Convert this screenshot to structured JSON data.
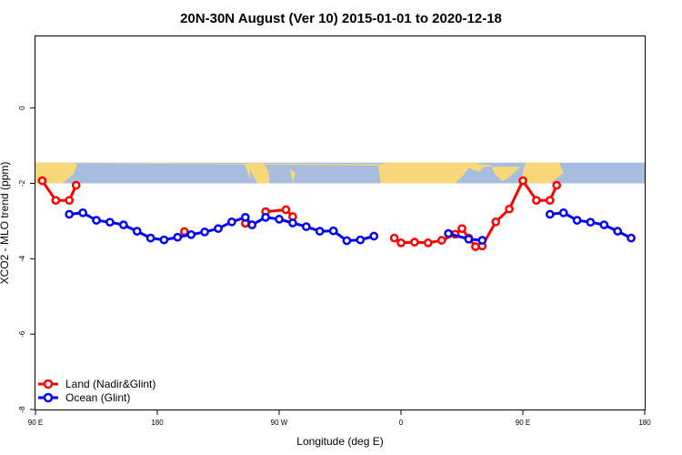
{
  "chart_data": {
    "type": "line",
    "title": "20N-30N August (Ver 10)   2015-01-01 to 2020-12-18",
    "xlabel": "Longitude (deg E)",
    "ylabel": "XCO2 - MLO trend (ppm)",
    "xlim": [
      90,
      540
    ],
    "ylim": [
      -8,
      1.9
    ],
    "x_ticks": [
      {
        "value": 90,
        "label": "90 E"
      },
      {
        "value": 180,
        "label": "180"
      },
      {
        "value": 270,
        "label": "90 W"
      },
      {
        "value": 360,
        "label": "0"
      },
      {
        "value": 450,
        "label": "90 E"
      },
      {
        "value": 540,
        "label": "180"
      }
    ],
    "y_ticks": [
      {
        "value": 0,
        "label": "0"
      },
      {
        "value": -2,
        "label": "-2"
      },
      {
        "value": -4,
        "label": "-4"
      },
      {
        "value": -6,
        "label": "-6"
      },
      {
        "value": -8,
        "label": "-8"
      }
    ],
    "map_band": {
      "lat_range": [
        20,
        30
      ],
      "y_range": [
        -1.45,
        -2.0
      ],
      "ocean_color": "#a7bddd",
      "land_color": "#f8d77b"
    },
    "legend": {
      "position": "bottom-left"
    },
    "series": [
      {
        "name": "Land (Nadir&Glint)",
        "color": "#ff0000",
        "segments": [
          [
            [
              95,
              -1.93
            ],
            [
              105,
              -2.45
            ],
            [
              115,
              -2.45
            ],
            [
              120,
              -2.05
            ]
          ],
          [
            [
              200,
              -3.28
            ]
          ],
          [
            [
              245,
              -3.06
            ],
            [
              250,
              -3.1
            ]
          ],
          [
            [
              260,
              -2.75
            ],
            [
              275,
              -2.7
            ],
            [
              280,
              -2.88
            ]
          ],
          [
            [
              355,
              -3.45
            ],
            [
              360,
              -3.58
            ],
            [
              370,
              -3.56
            ],
            [
              380,
              -3.58
            ],
            [
              390,
              -3.51
            ],
            [
              400,
              -3.35
            ],
            [
              405,
              -3.2
            ],
            [
              410,
              -3.45
            ],
            [
              415,
              -3.68
            ],
            [
              420,
              -3.66
            ],
            [
              430,
              -3.02
            ],
            [
              440,
              -2.68
            ],
            [
              450,
              -1.93
            ],
            [
              460,
              -2.45
            ],
            [
              470,
              -2.45
            ],
            [
              475,
              -2.05
            ]
          ]
        ]
      },
      {
        "name": "Ocean (Glint)",
        "color": "#0000ff",
        "segments": [
          [
            [
              115,
              -2.82
            ],
            [
              125,
              -2.78
            ],
            [
              135,
              -2.98
            ],
            [
              145,
              -3.03
            ],
            [
              155,
              -3.1
            ],
            [
              165,
              -3.27
            ],
            [
              175,
              -3.45
            ],
            [
              185,
              -3.5
            ],
            [
              195,
              -3.43
            ],
            [
              205,
              -3.36
            ],
            [
              215,
              -3.29
            ],
            [
              225,
              -3.2
            ],
            [
              235,
              -3.02
            ],
            [
              245,
              -2.9
            ],
            [
              250,
              -3.1
            ],
            [
              260,
              -2.9
            ],
            [
              270,
              -2.95
            ],
            [
              280,
              -3.05
            ],
            [
              290,
              -3.15
            ],
            [
              300,
              -3.27
            ],
            [
              310,
              -3.26
            ],
            [
              320,
              -3.52
            ],
            [
              330,
              -3.5
            ],
            [
              340,
              -3.4
            ]
          ],
          [
            [
              395,
              -3.33
            ],
            [
              410,
              -3.48
            ],
            [
              420,
              -3.51
            ]
          ],
          [
            [
              470,
              -2.82
            ],
            [
              480,
              -2.78
            ],
            [
              490,
              -2.98
            ],
            [
              500,
              -3.03
            ],
            [
              510,
              -3.1
            ],
            [
              520,
              -3.27
            ],
            [
              530,
              -3.45
            ]
          ]
        ]
      }
    ]
  }
}
